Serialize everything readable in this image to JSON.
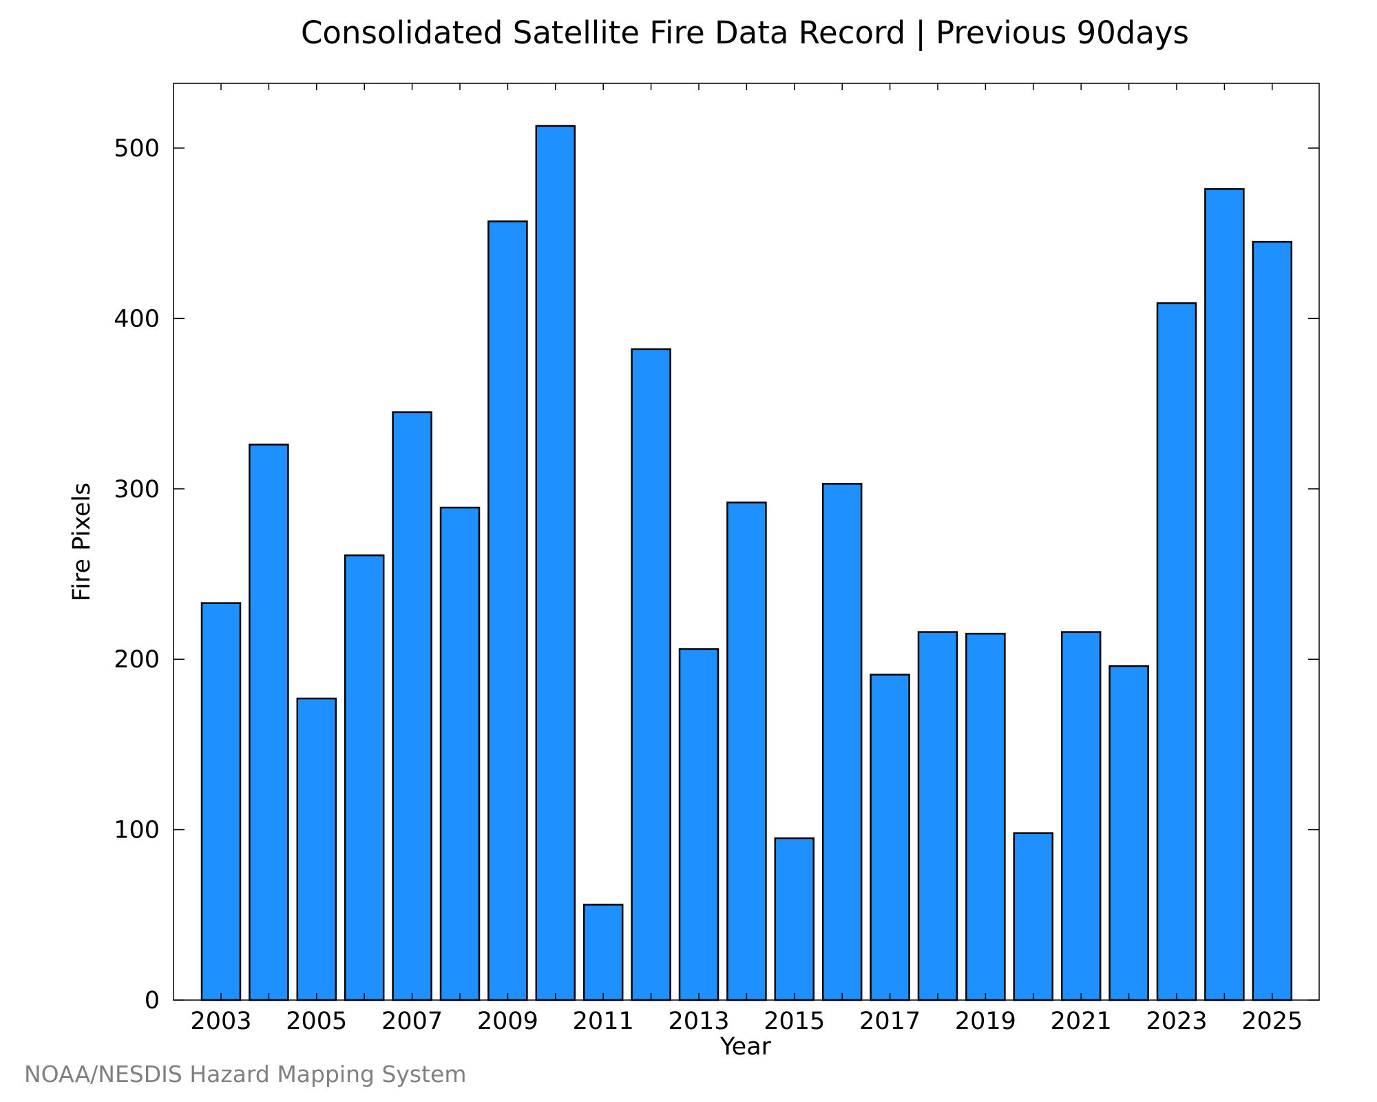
{
  "chart_data": {
    "type": "bar",
    "title": "Consolidated Satellite Fire Data Record | Previous 90days",
    "xlabel": "Year",
    "ylabel": "Fire Pixels",
    "categories": [
      "2003",
      "2004",
      "2005",
      "2006",
      "2007",
      "2008",
      "2009",
      "2010",
      "2011",
      "2012",
      "2013",
      "2014",
      "2015",
      "2016",
      "2017",
      "2018",
      "2019",
      "2020",
      "2021",
      "2022",
      "2023",
      "2024",
      "2025"
    ],
    "values": [
      233,
      326,
      177,
      261,
      345,
      289,
      457,
      513,
      56,
      382,
      206,
      292,
      95,
      303,
      191,
      216,
      215,
      98,
      216,
      196,
      409,
      476,
      445
    ],
    "x_tick_labels": [
      "2003",
      "2005",
      "2007",
      "2009",
      "2011",
      "2013",
      "2015",
      "2017",
      "2019",
      "2021",
      "2023",
      "2025"
    ],
    "y_ticks": [
      0,
      100,
      200,
      300,
      400,
      500
    ],
    "ylim": [
      0,
      538
    ],
    "grid": false,
    "bar_color": "#1e90ff",
    "edge_color": "#000000"
  },
  "credit": "NOAA/NESDIS Hazard Mapping System"
}
